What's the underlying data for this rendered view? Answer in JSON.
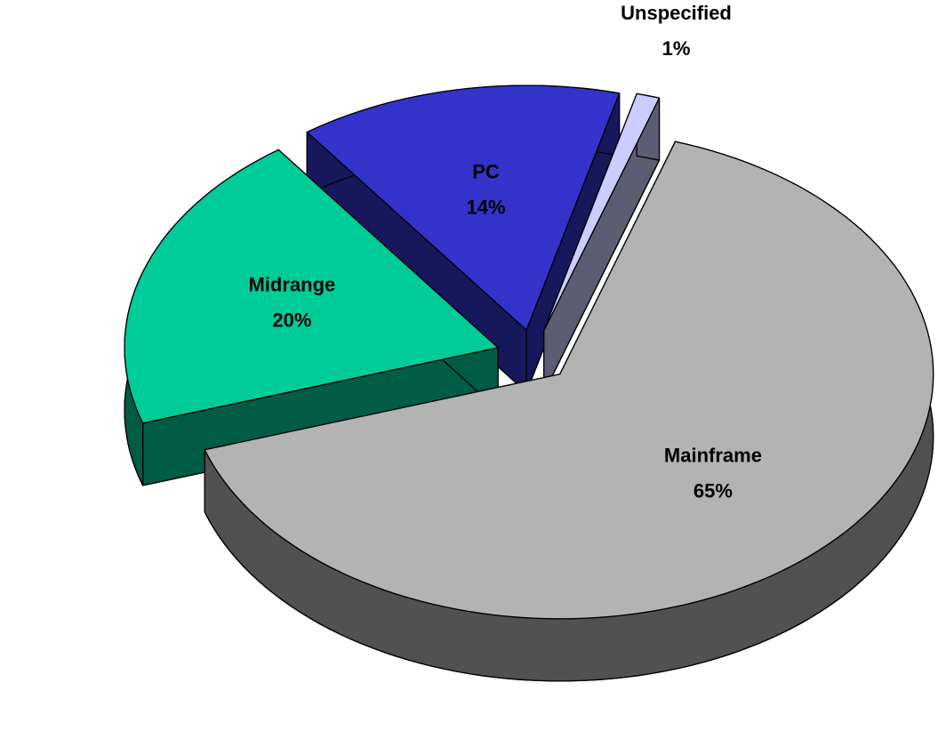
{
  "chart_data": {
    "type": "pie",
    "categories": [
      "Mainframe",
      "Midrange",
      "PC",
      "Unspecified"
    ],
    "values": [
      65,
      20,
      14,
      1
    ],
    "value_labels": [
      "65%",
      "20%",
      "14%",
      "1%"
    ],
    "colors": [
      "#b3b3b3",
      "#00cc99",
      "#3333cc",
      "#ccccff"
    ]
  }
}
